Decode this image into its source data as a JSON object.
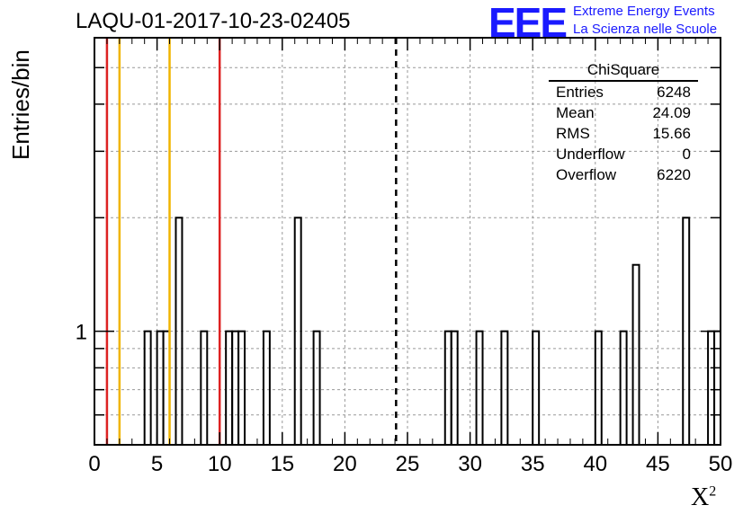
{
  "title": "LAQU-01-2017-10-23-02405",
  "logo": {
    "mark": "EEE",
    "line1": "Extreme Energy Events",
    "line2": "La Scienza nelle Scuole",
    "color": "#1a1aff"
  },
  "stats": {
    "title": "ChiSquare",
    "rows": [
      {
        "label": "Entries",
        "value": "6248"
      },
      {
        "label": "Mean",
        "value": "24.09"
      },
      {
        "label": "RMS",
        "value": "15.66"
      },
      {
        "label": "Underflow",
        "value": "0"
      },
      {
        "label": "Overflow",
        "value": "6220"
      }
    ]
  },
  "chart_data": {
    "type": "bar",
    "title": "LAQU-01-2017-10-23-02405",
    "xlabel": "X",
    "xlabel_sup": "2",
    "ylabel": "Entries/bin",
    "xlim": [
      0,
      50
    ],
    "log_y": true,
    "ylim": [
      0.5,
      6
    ],
    "grid": true,
    "x_ticks": [
      "0",
      "5",
      "10",
      "15",
      "20",
      "25",
      "30",
      "35",
      "40",
      "45",
      "50"
    ],
    "y_tick_labels": [
      {
        "value": 1,
        "label": "1"
      }
    ],
    "bin_width": 0.5,
    "bins": [
      {
        "x": 4.0,
        "count": 1
      },
      {
        "x": 5.0,
        "count": 1
      },
      {
        "x": 5.5,
        "count": 1
      },
      {
        "x": 6.5,
        "count": 2
      },
      {
        "x": 8.5,
        "count": 1
      },
      {
        "x": 10.5,
        "count": 1
      },
      {
        "x": 11.0,
        "count": 1
      },
      {
        "x": 11.5,
        "count": 1
      },
      {
        "x": 13.5,
        "count": 1
      },
      {
        "x": 16.0,
        "count": 2
      },
      {
        "x": 17.5,
        "count": 1
      },
      {
        "x": 28.0,
        "count": 1
      },
      {
        "x": 28.5,
        "count": 1
      },
      {
        "x": 30.5,
        "count": 1
      },
      {
        "x": 32.5,
        "count": 1
      },
      {
        "x": 35.0,
        "count": 1
      },
      {
        "x": 40.0,
        "count": 1
      },
      {
        "x": 42.0,
        "count": 1
      },
      {
        "x": 43.0,
        "count": 1.5
      },
      {
        "x": 47.0,
        "count": 2
      },
      {
        "x": 49.0,
        "count": 1
      },
      {
        "x": 49.5,
        "count": 1
      }
    ],
    "vertical_lines": [
      {
        "x": 1,
        "color": "#dd2222",
        "style": "solid"
      },
      {
        "x": 2,
        "color": "#f0b400",
        "style": "solid"
      },
      {
        "x": 6,
        "color": "#f0b400",
        "style": "solid"
      },
      {
        "x": 10,
        "color": "#dd2222",
        "style": "solid"
      },
      {
        "x": 24.09,
        "color": "#000000",
        "style": "dashed"
      }
    ]
  }
}
